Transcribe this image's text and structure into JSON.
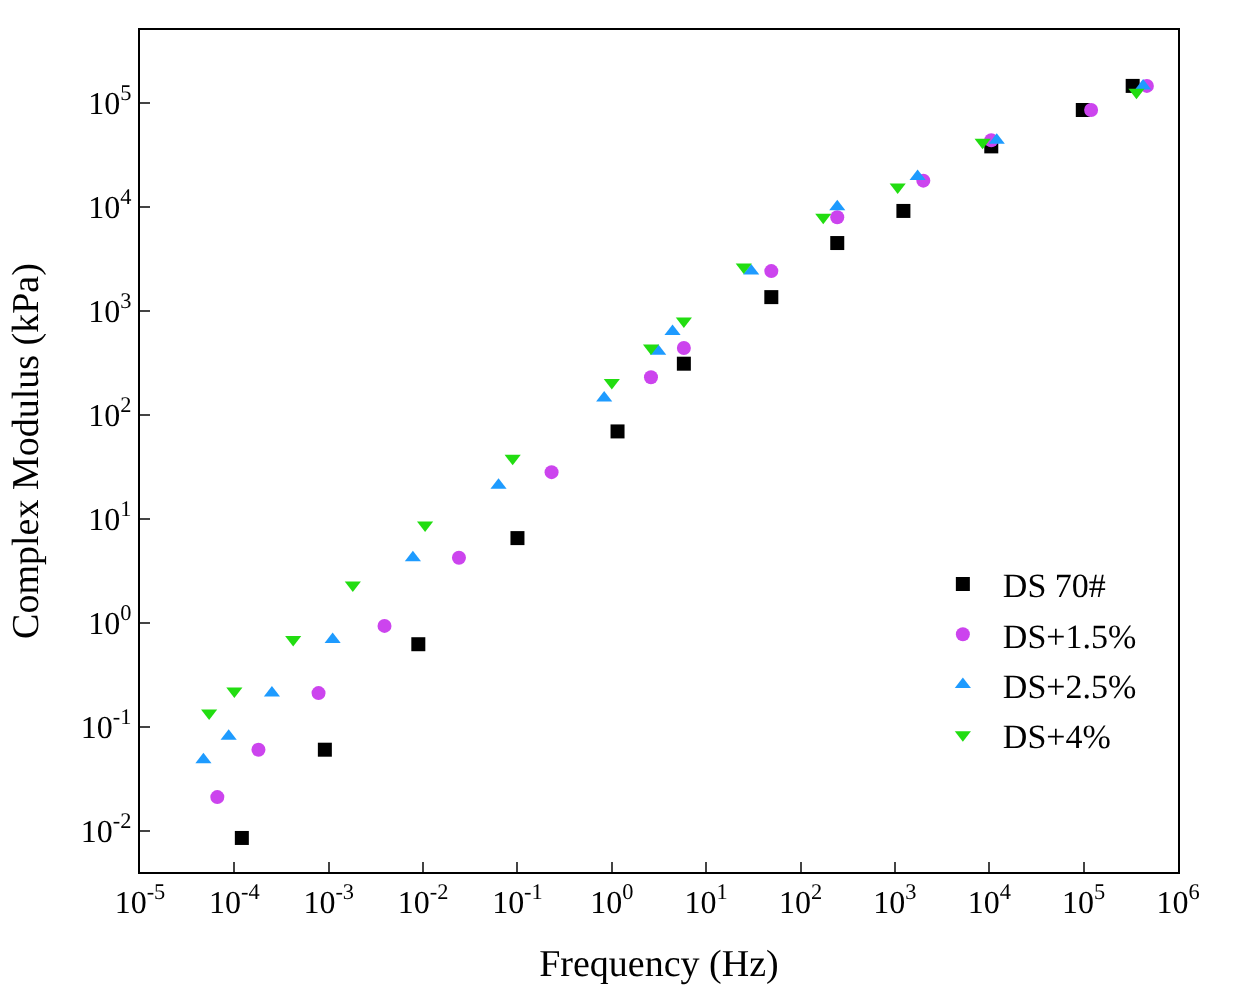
{
  "chart_data": {
    "type": "scatter",
    "xlabel": "Frequency (Hz)",
    "ylabel": "Complex Modulus (kPa)",
    "log": "xy",
    "legend": "bottom right",
    "xlim": [
      1e-05,
      1000000.0
    ],
    "ylim": [
      0.004,
      500000
    ],
    "xticks": [
      {
        "value": 1e-05,
        "label": "10$^{-5}$"
      },
      {
        "value": 0.0001,
        "label": "10$^{-4}$"
      },
      {
        "value": 0.001,
        "label": "10$^{-3}$"
      },
      {
        "value": 0.01,
        "label": "10$^{-2}$"
      },
      {
        "value": 0.1,
        "label": "10$^{-1}$"
      },
      {
        "value": 1,
        "label": "10$^{0}$"
      },
      {
        "value": 10,
        "label": "10$^{1}$"
      },
      {
        "value": 100,
        "label": "10$^{2}$"
      },
      {
        "value": 1000,
        "label": "10$^{3}$"
      },
      {
        "value": 10000,
        "label": "10$^{4}$"
      },
      {
        "value": 100000,
        "label": "10$^{5}$"
      },
      {
        "value": 1000000,
        "label": "10$^{6}$"
      }
    ],
    "yticks": [
      {
        "value": 0.01,
        "label": "10$^{-2}$"
      },
      {
        "value": 0.1,
        "label": "10$^{-1}$"
      },
      {
        "value": 1,
        "label": "10$^{0}$"
      },
      {
        "value": 10,
        "label": "10$^{1}$"
      },
      {
        "value": 100,
        "label": "10$^{2}$"
      },
      {
        "value": 1000,
        "label": "10$^{3}$"
      },
      {
        "value": 10000,
        "label": "10$^{4}$"
      },
      {
        "value": 100000,
        "label": "10$^{5}$"
      }
    ],
    "series": [
      {
        "name": "DS 70#",
        "color": "#000000",
        "marker": "square",
        "x": [
          0.00012,
          0.00091,
          0.0089,
          0.1,
          1.15,
          5.8,
          49,
          245,
          1230,
          10500,
          98000,
          331000
        ],
        "values": [
          0.0085,
          0.06,
          0.62,
          6.5,
          69,
          309,
          1350,
          4470,
          9100,
          38000,
          85000,
          145000
        ]
      },
      {
        "name": "DS+1.5%",
        "color": "#cc44ee",
        "marker": "circle",
        "x": [
          6.6e-05,
          0.00018,
          0.00078,
          0.0039,
          0.024,
          0.23,
          2.6,
          5.8,
          49,
          245,
          2000,
          10500,
          120000,
          468000
        ],
        "values": [
          0.021,
          0.06,
          0.21,
          0.93,
          4.2,
          28,
          229,
          437,
          2400,
          7900,
          17800,
          43600,
          85000,
          145000
        ]
      },
      {
        "name": "DS+2.5%",
        "color": "#1e9bff",
        "marker": "triangle",
        "x": [
          4.7e-05,
          8.7e-05,
          0.00025,
          0.0011,
          0.0078,
          0.063,
          0.83,
          3.1,
          4.4,
          30,
          245,
          1740,
          12000,
          427000
        ],
        "values": [
          0.048,
          0.081,
          0.21,
          0.69,
          4.2,
          21,
          145,
          407,
          631,
          2400,
          10000,
          19500,
          43600,
          145000
        ]
      },
      {
        "name": "DS+4%",
        "color": "#22dd11",
        "marker": "triangle-down",
        "x": [
          5.4e-05,
          0.0001,
          0.00042,
          0.0018,
          0.0105,
          0.089,
          1.0,
          2.6,
          5.8,
          25,
          174,
          1070,
          8500,
          363000
        ],
        "values": [
          0.135,
          0.22,
          0.69,
          2.3,
          8.7,
          38,
          204,
          437,
          794,
          2630,
          7900,
          15500,
          41700,
          126000
        ]
      }
    ]
  }
}
